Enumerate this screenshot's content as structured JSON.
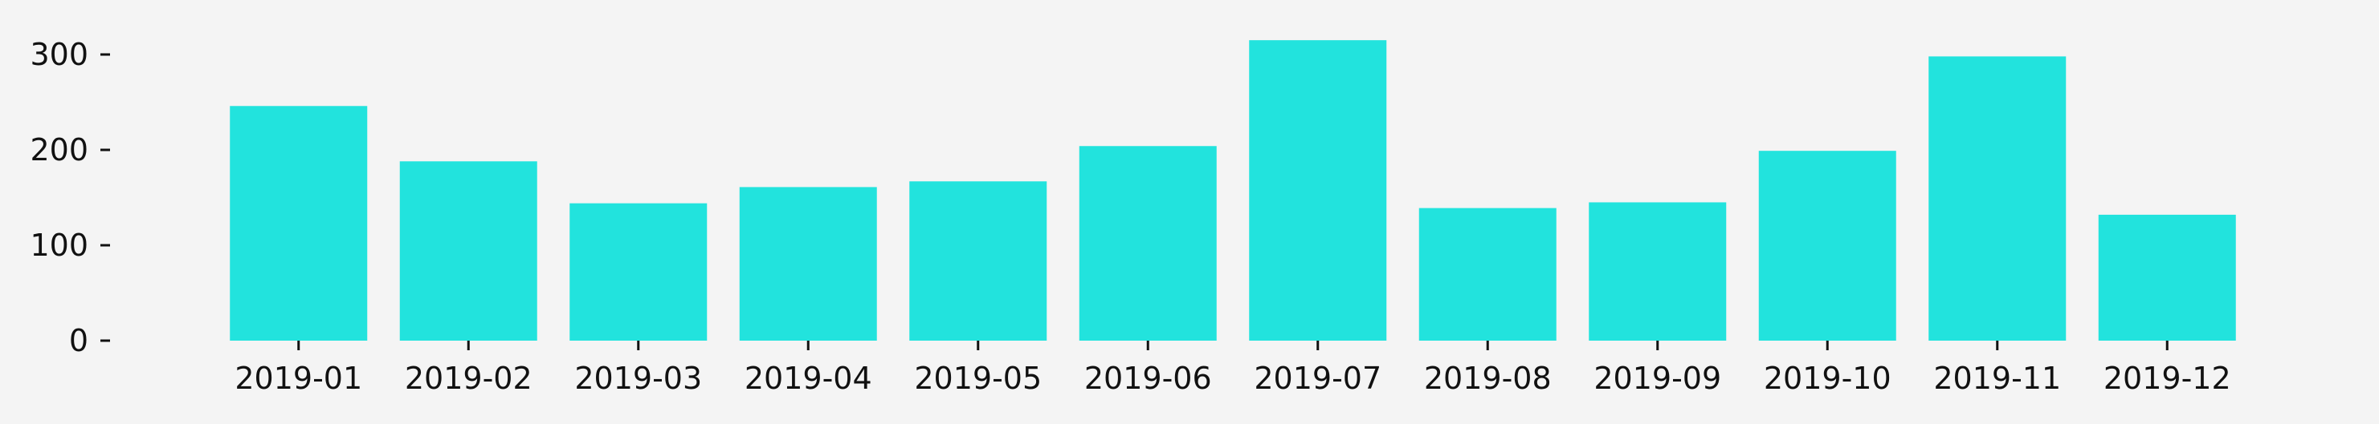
{
  "colors": {
    "background": "#f4f4f4",
    "bar": "#22e3dd",
    "text": "#111111",
    "tick": "#111111"
  },
  "chart_data": {
    "type": "bar",
    "title": "",
    "xlabel": "",
    "ylabel": "",
    "categories": [
      "2019-01",
      "2019-02",
      "2019-03",
      "2019-04",
      "2019-05",
      "2019-06",
      "2019-07",
      "2019-08",
      "2019-09",
      "2019-10",
      "2019-11",
      "2019-12"
    ],
    "values": [
      246,
      188,
      144,
      161,
      167,
      204,
      315,
      139,
      145,
      199,
      298,
      132
    ],
    "ylim": [
      0,
      330
    ],
    "yticks": [
      0,
      100,
      200,
      300
    ],
    "grid": false,
    "legend": "none"
  }
}
